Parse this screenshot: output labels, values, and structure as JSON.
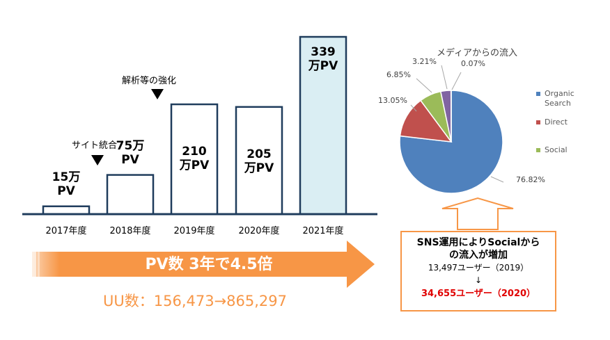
{
  "chart_data": [
    {
      "type": "bar",
      "title": "",
      "categories": [
        "2017年度",
        "2018年度",
        "2019年度",
        "2020年度",
        "2021年度"
      ],
      "values": [
        15,
        75,
        210,
        205,
        339
      ],
      "unit": "万PV",
      "value_labels": [
        [
          "15万",
          "PV"
        ],
        [
          "75万",
          "PV"
        ],
        [
          "210",
          "万PV"
        ],
        [
          "205",
          "万PV"
        ],
        [
          "339",
          "万PV"
        ]
      ],
      "highlight_color": "#daeef3",
      "border_color": "#1f3c5c",
      "annotations": [
        {
          "text": "サイト統合",
          "category": "2018年度"
        },
        {
          "text": "解析等の強化",
          "category": "2019年度"
        }
      ]
    },
    {
      "type": "pie",
      "title": "メディアからの流入",
      "slices": [
        {
          "label": "Organic Search",
          "value": 76.82,
          "value_label": "76.82%",
          "color": "#4f81bd"
        },
        {
          "label": "Direct",
          "value": 13.05,
          "value_label": "13.05%",
          "color": "#c0504d"
        },
        {
          "label": "Social",
          "value": 6.85,
          "value_label": "6.85%",
          "color": "#9bbb59"
        },
        {
          "label": "",
          "value": 3.21,
          "value_label": "3.21%",
          "color": "#8064a2"
        },
        {
          "label": "",
          "value": 0.07,
          "value_label": "0.07%",
          "color": "#4bacc6"
        }
      ],
      "legend": [
        "Organic",
        "Search",
        "Direct",
        "Social"
      ]
    }
  ],
  "growth_arrow": {
    "text": "PV数 3年で4.5倍",
    "color": "#f79646"
  },
  "uu_text": "UU数：156,473→865,297",
  "callout": {
    "line1": "SNS運用によりSocialから",
    "line2": "の流入が増加",
    "line3": "13,497ユーザー（2019）",
    "arrow": "↓",
    "line4": "34,655ユーザー（2020）"
  }
}
